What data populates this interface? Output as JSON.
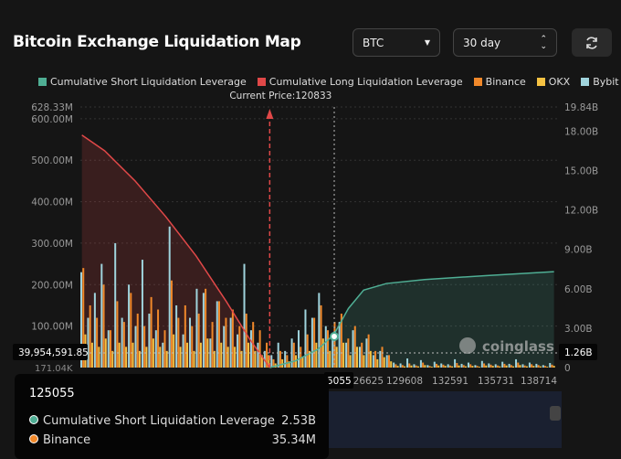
{
  "header": {
    "title": "Bitcoin Exchange Liquidation Map",
    "coin": "BTC",
    "period": "30 day",
    "refresh_icon": "refresh-icon"
  },
  "colors": {
    "short": "#4fae94",
    "long": "#e04848",
    "binance": "#f0882a",
    "okx": "#f5c242",
    "bybit": "#9fd3dc"
  },
  "chart_data": {
    "type": "bar",
    "legend": [
      "Cumulative Short Liquidation Leverage",
      "Cumulative Long Liquidation Leverage",
      "Binance",
      "OKX",
      "Bybit"
    ],
    "legend_position": "top",
    "current_price_label": "Current Price:120833",
    "current_price": 120833,
    "left_axis_ticks": [
      "628.33M",
      "600.00M",
      "500.00M",
      "400.00M",
      "300.00M",
      "200.00M",
      "100.00M"
    ],
    "right_axis_ticks": [
      "19.84B",
      "18.00B",
      "15.00B",
      "12.00B",
      "9.00B",
      "6.00B",
      "3.00B",
      "0"
    ],
    "left_ylim": [
      0,
      628.33
    ],
    "right_ylim": [
      0,
      19.84
    ],
    "x_ticks": [
      "125055",
      "126625",
      "129608",
      "132591",
      "135731",
      "138714"
    ],
    "xlim": [
      108400,
      139700
    ],
    "crosshair": {
      "x_label": "125055",
      "left_label": "39,954,591.85",
      "right_label": "1.26B",
      "bottom_left_label": "171.04K"
    },
    "bar_start": 108400,
    "bar_step": 446,
    "binance": [
      240,
      150,
      120,
      200,
      90,
      160,
      110,
      180,
      130,
      100,
      170,
      140,
      90,
      210,
      120,
      150,
      100,
      130,
      190,
      110,
      160,
      120,
      140,
      100,
      130,
      110,
      90,
      60,
      20,
      40,
      30,
      60,
      50,
      80,
      120,
      150,
      90,
      110,
      130,
      70,
      100,
      60,
      80,
      40,
      50,
      30,
      8,
      6,
      10,
      5,
      12,
      4,
      9,
      7,
      5,
      11,
      6,
      8,
      4,
      10,
      7,
      5,
      9,
      6,
      12,
      5,
      8,
      6,
      4,
      7
    ],
    "okx": [
      80,
      60,
      50,
      70,
      40,
      60,
      50,
      60,
      40,
      50,
      70,
      50,
      40,
      80,
      50,
      60,
      40,
      60,
      70,
      40,
      60,
      50,
      50,
      40,
      60,
      40,
      30,
      30,
      10,
      20,
      15,
      30,
      25,
      40,
      60,
      70,
      40,
      50,
      60,
      30,
      50,
      30,
      40,
      20,
      25,
      15,
      4,
      3,
      5,
      3,
      6,
      2,
      5,
      4,
      3,
      5,
      3,
      4,
      2,
      5,
      4,
      3,
      5,
      3,
      6,
      3,
      4,
      3,
      2,
      4
    ],
    "bybit": [
      230,
      120,
      180,
      250,
      90,
      300,
      120,
      200,
      100,
      260,
      130,
      90,
      60,
      340,
      150,
      80,
      120,
      190,
      180,
      70,
      160,
      100,
      120,
      80,
      250,
      90,
      60,
      40,
      30,
      60,
      40,
      70,
      90,
      140,
      120,
      180,
      100,
      80,
      110,
      60,
      90,
      50,
      70,
      30,
      40,
      30,
      12,
      10,
      22,
      8,
      18,
      6,
      14,
      10,
      8,
      20,
      9,
      12,
      6,
      16,
      10,
      8,
      14,
      9,
      20,
      8,
      12,
      9,
      6,
      11
    ],
    "cumulative_long_B": {
      "x": [
        108500,
        110000,
        112000,
        114000,
        116000,
        118000,
        119500,
        120833
      ],
      "y": [
        17.7,
        16.5,
        14.2,
        11.5,
        8.5,
        5.0,
        2.2,
        0
      ]
    },
    "cumulative_short_B": {
      "x": [
        120833,
        122500,
        124000,
        125055,
        126000,
        127000,
        128500,
        131000,
        135000,
        139500
      ],
      "y": [
        0,
        0.5,
        1.4,
        2.53,
        4.5,
        5.9,
        6.4,
        6.7,
        7.0,
        7.3
      ]
    }
  },
  "tooltip": {
    "price": "125055",
    "rows": [
      {
        "label": "Cumulative Short Liquidation Leverage",
        "value": "2.53B",
        "color": "#4fae94"
      },
      {
        "label": "Binance",
        "value": "35.34M",
        "color": "#f0882a"
      }
    ]
  },
  "watermark": "coinglass"
}
